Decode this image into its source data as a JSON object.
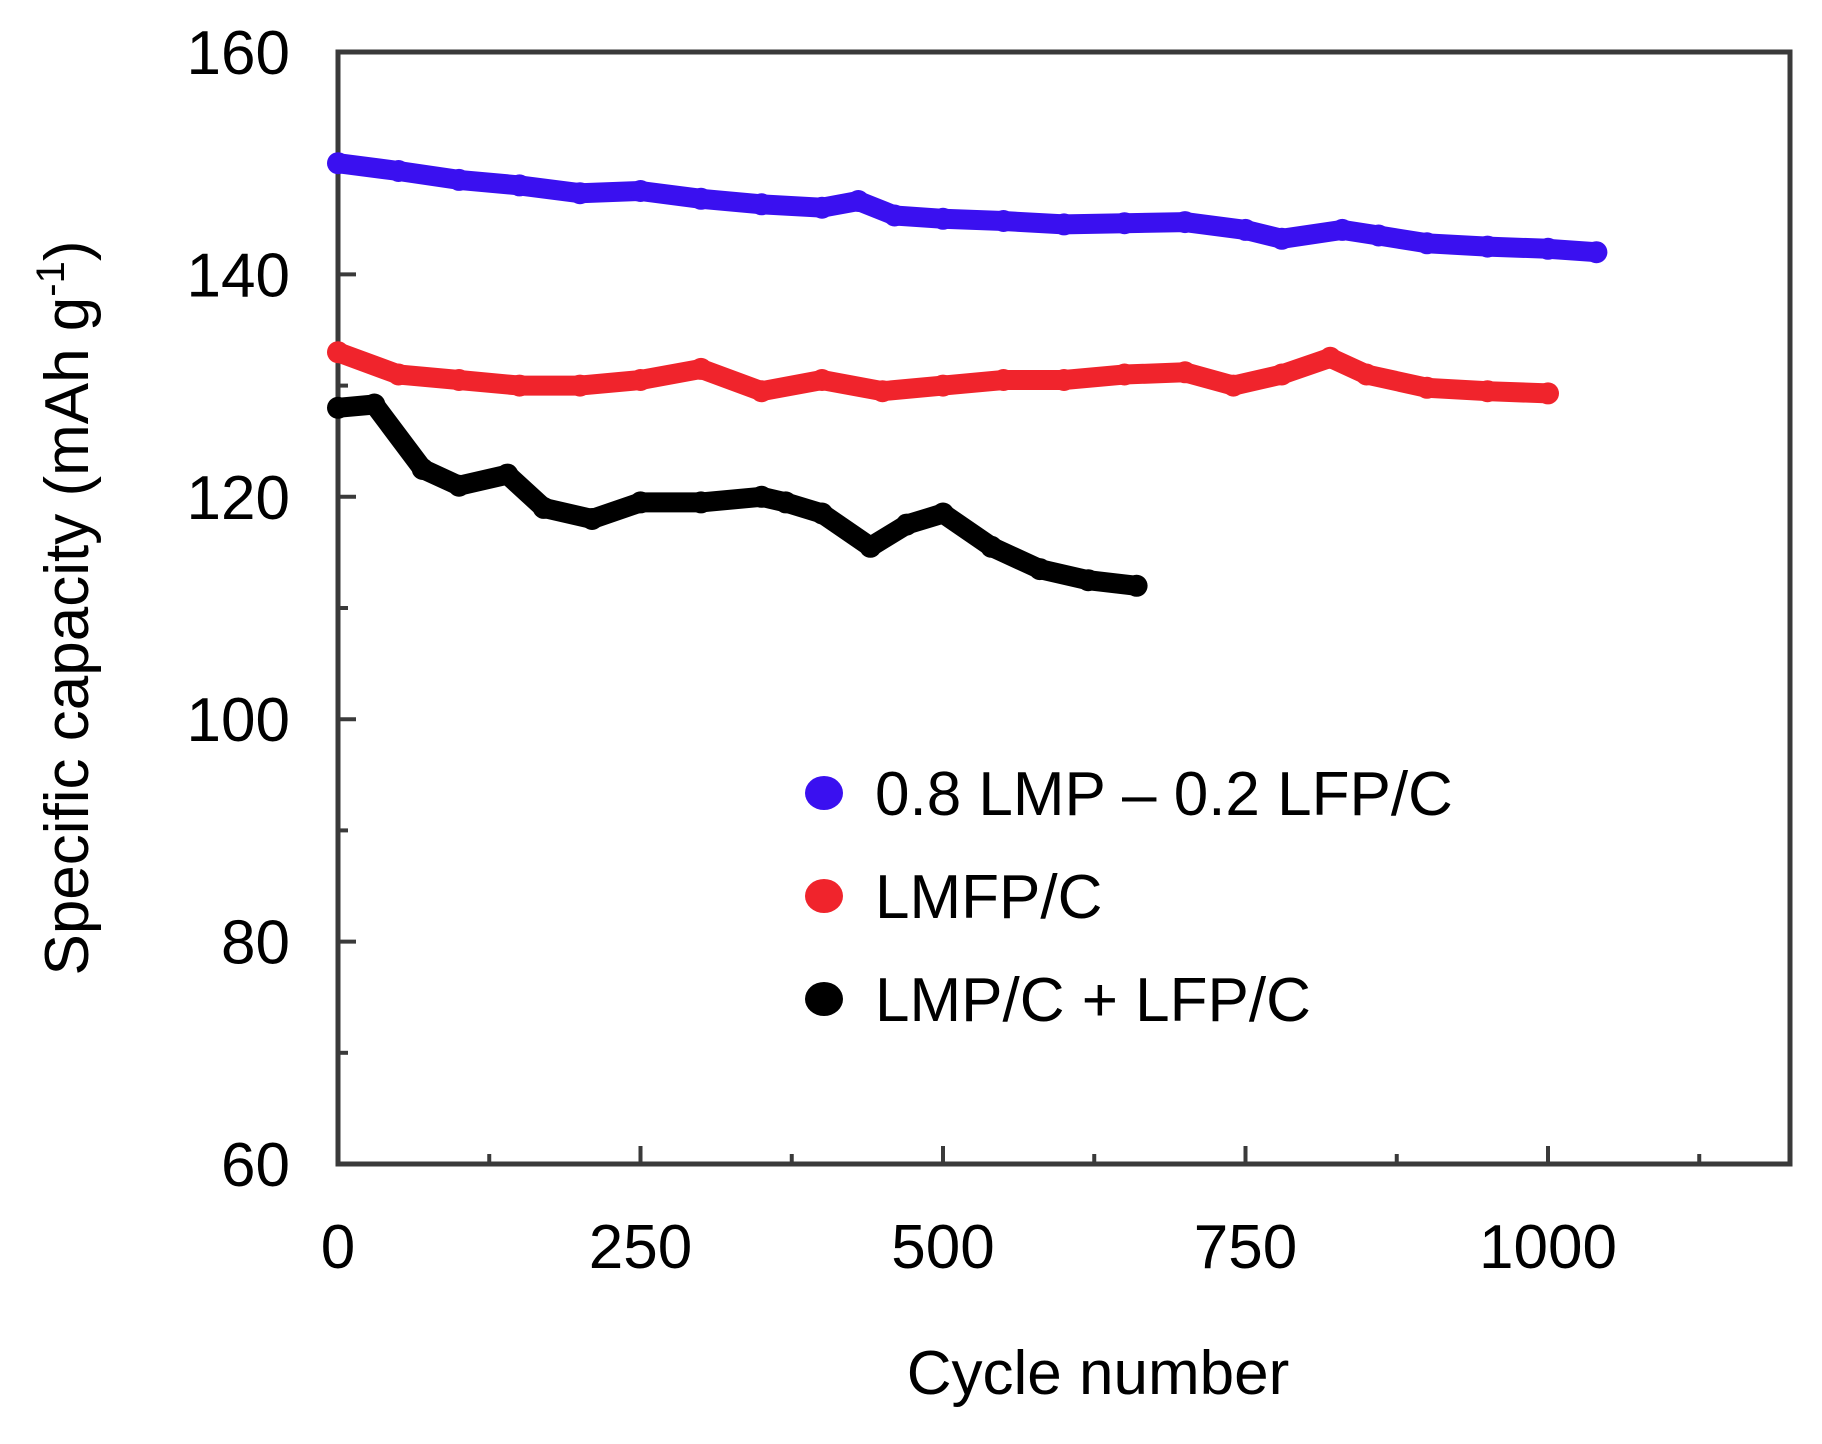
{
  "chart_data": {
    "type": "line",
    "title": "",
    "xlabel": "Cycle number",
    "ylabel": "Specific capacity (mAh g",
    "ylabel_superscript": "-1",
    "ylabel_close": ")",
    "xlim": [
      0,
      1200
    ],
    "ylim": [
      60,
      160
    ],
    "xticks": [
      0,
      250,
      500,
      750,
      1000
    ],
    "xtick_labels": [
      "0",
      "250",
      "500",
      "750",
      "1000"
    ],
    "xminor": [
      125,
      375,
      625,
      875,
      1125
    ],
    "yticks": [
      60,
      80,
      100,
      120,
      140,
      160
    ],
    "ytick_labels": [
      "60",
      "80",
      "100",
      "120",
      "140",
      "160"
    ],
    "yminor": [
      70,
      90,
      110,
      130,
      150
    ],
    "legend_position": "lower-right",
    "series": [
      {
        "name": "0.8 LMP – 0.2 LFP/C",
        "color": "#3a10f0",
        "x": [
          0,
          50,
          100,
          150,
          200,
          250,
          300,
          350,
          400,
          430,
          460,
          500,
          550,
          600,
          650,
          700,
          750,
          780,
          830,
          860,
          900,
          950,
          1000,
          1040
        ],
        "y": [
          150,
          149.3,
          148.5,
          148,
          147.3,
          147.5,
          146.8,
          146.3,
          146,
          146.6,
          145.3,
          145,
          144.8,
          144.5,
          144.6,
          144.7,
          144,
          143.2,
          144,
          143.5,
          142.8,
          142.5,
          142.3,
          142
        ]
      },
      {
        "name": "LMFP/C",
        "color": "#f0242c",
        "x": [
          0,
          50,
          100,
          150,
          200,
          250,
          300,
          350,
          400,
          450,
          500,
          550,
          600,
          650,
          700,
          740,
          780,
          820,
          850,
          900,
          950,
          1000
        ],
        "y": [
          133,
          131,
          130.5,
          130,
          130,
          130.5,
          131.5,
          129.5,
          130.5,
          129.5,
          130,
          130.5,
          130.5,
          131,
          131.2,
          130,
          131,
          132.5,
          131,
          129.8,
          129.5,
          129.3
        ]
      },
      {
        "name": "LMP/C + LFP/C",
        "color": "#000000",
        "x": [
          0,
          30,
          70,
          100,
          140,
          170,
          210,
          250,
          300,
          350,
          370,
          400,
          440,
          470,
          500,
          540,
          580,
          620,
          660
        ],
        "y": [
          128,
          128.3,
          122.5,
          121,
          122,
          119,
          118,
          119.5,
          119.5,
          120,
          119.5,
          118.5,
          115.5,
          117.5,
          118.5,
          115.5,
          113.5,
          112.5,
          112
        ]
      }
    ]
  }
}
